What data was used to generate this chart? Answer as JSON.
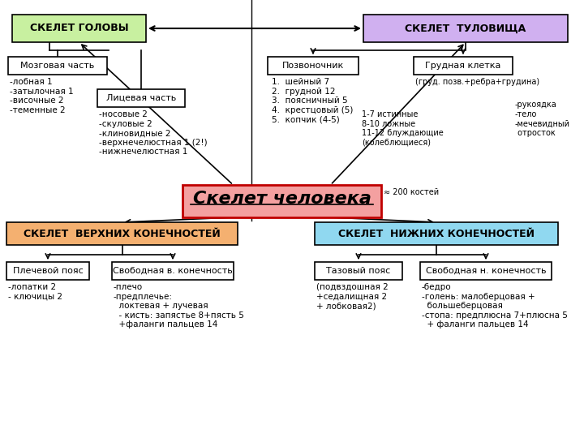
{
  "bg_color": "#ffffff",
  "title": "Скелет человека",
  "title_note": "≈ 200 костей",
  "title_color": "#f4a0a0",
  "title_border": "#c00000",
  "box_head_label": "СКЕЛЕТ ГОЛОВЫ",
  "box_head_color": "#c8f0a0",
  "box_torso_label": "СКЕЛЕТ  ТУЛОВИЩА",
  "box_torso_color": "#d0b0f0",
  "box_upper_label": "СКЕЛЕТ  ВЕРХНИХ КОНЕЧНОСТЕЙ",
  "box_upper_color": "#f4b070",
  "box_lower_label": "СКЕЛЕТ  НИЖНИХ КОНЕЧНОСТЕЙ",
  "box_lower_color": "#90d8f0",
  "mozg_label": "Мозговая часть",
  "mozg_text": "-лобная 1\n-затылочная 1\n-височные 2\n-теменные 2",
  "lits_label": "Лицевая часть",
  "lits_text": "-носовые 2\n-скуловые 2\n-клиновидные 2\n-верхнечелюстная 1 (2!)\n-нижнечелюстная 1",
  "pozv_label": "Позвоночник",
  "pozv_text": "1.  шейный 7\n2.  грудной 12\n3.  поясничный 5\n4.  крестцовый (5)\n5.  копчик (4-5)",
  "grk_label": "Грудная клетка",
  "grk_text": "(груд. позв.+ребра+грудина)",
  "grk_sub": "-рукоядка\n-тело\n-мечевидный\n отросток",
  "rib_text": "1-7 истинные\n8-10 ложные\n11-12 блуждающие\n(колеблющиеся)",
  "plech_label": "Плечевой пояс",
  "plech_text": "-лопатки 2\n- ключицы 2",
  "svobv_label": "Свободная в. конечность",
  "svobv_text": "-плечо\n-предплечье:\n  локтевая + лучевая\n  - кисть: запястье 8+пясть 5\n  +фаланги пальцев 14",
  "taz_label": "Тазовый пояс",
  "taz_text": "(подвздошная 2\n+седалищная 2\n+ лобковая2)",
  "svobn_label": "Свободная н. конечность",
  "svobn_text": "-бедро\n-голень: малоберцовая +\n  большеберцовая\n-стопа: предплюсна 7+плюсна 5\n  + фаланги пальцев 14"
}
